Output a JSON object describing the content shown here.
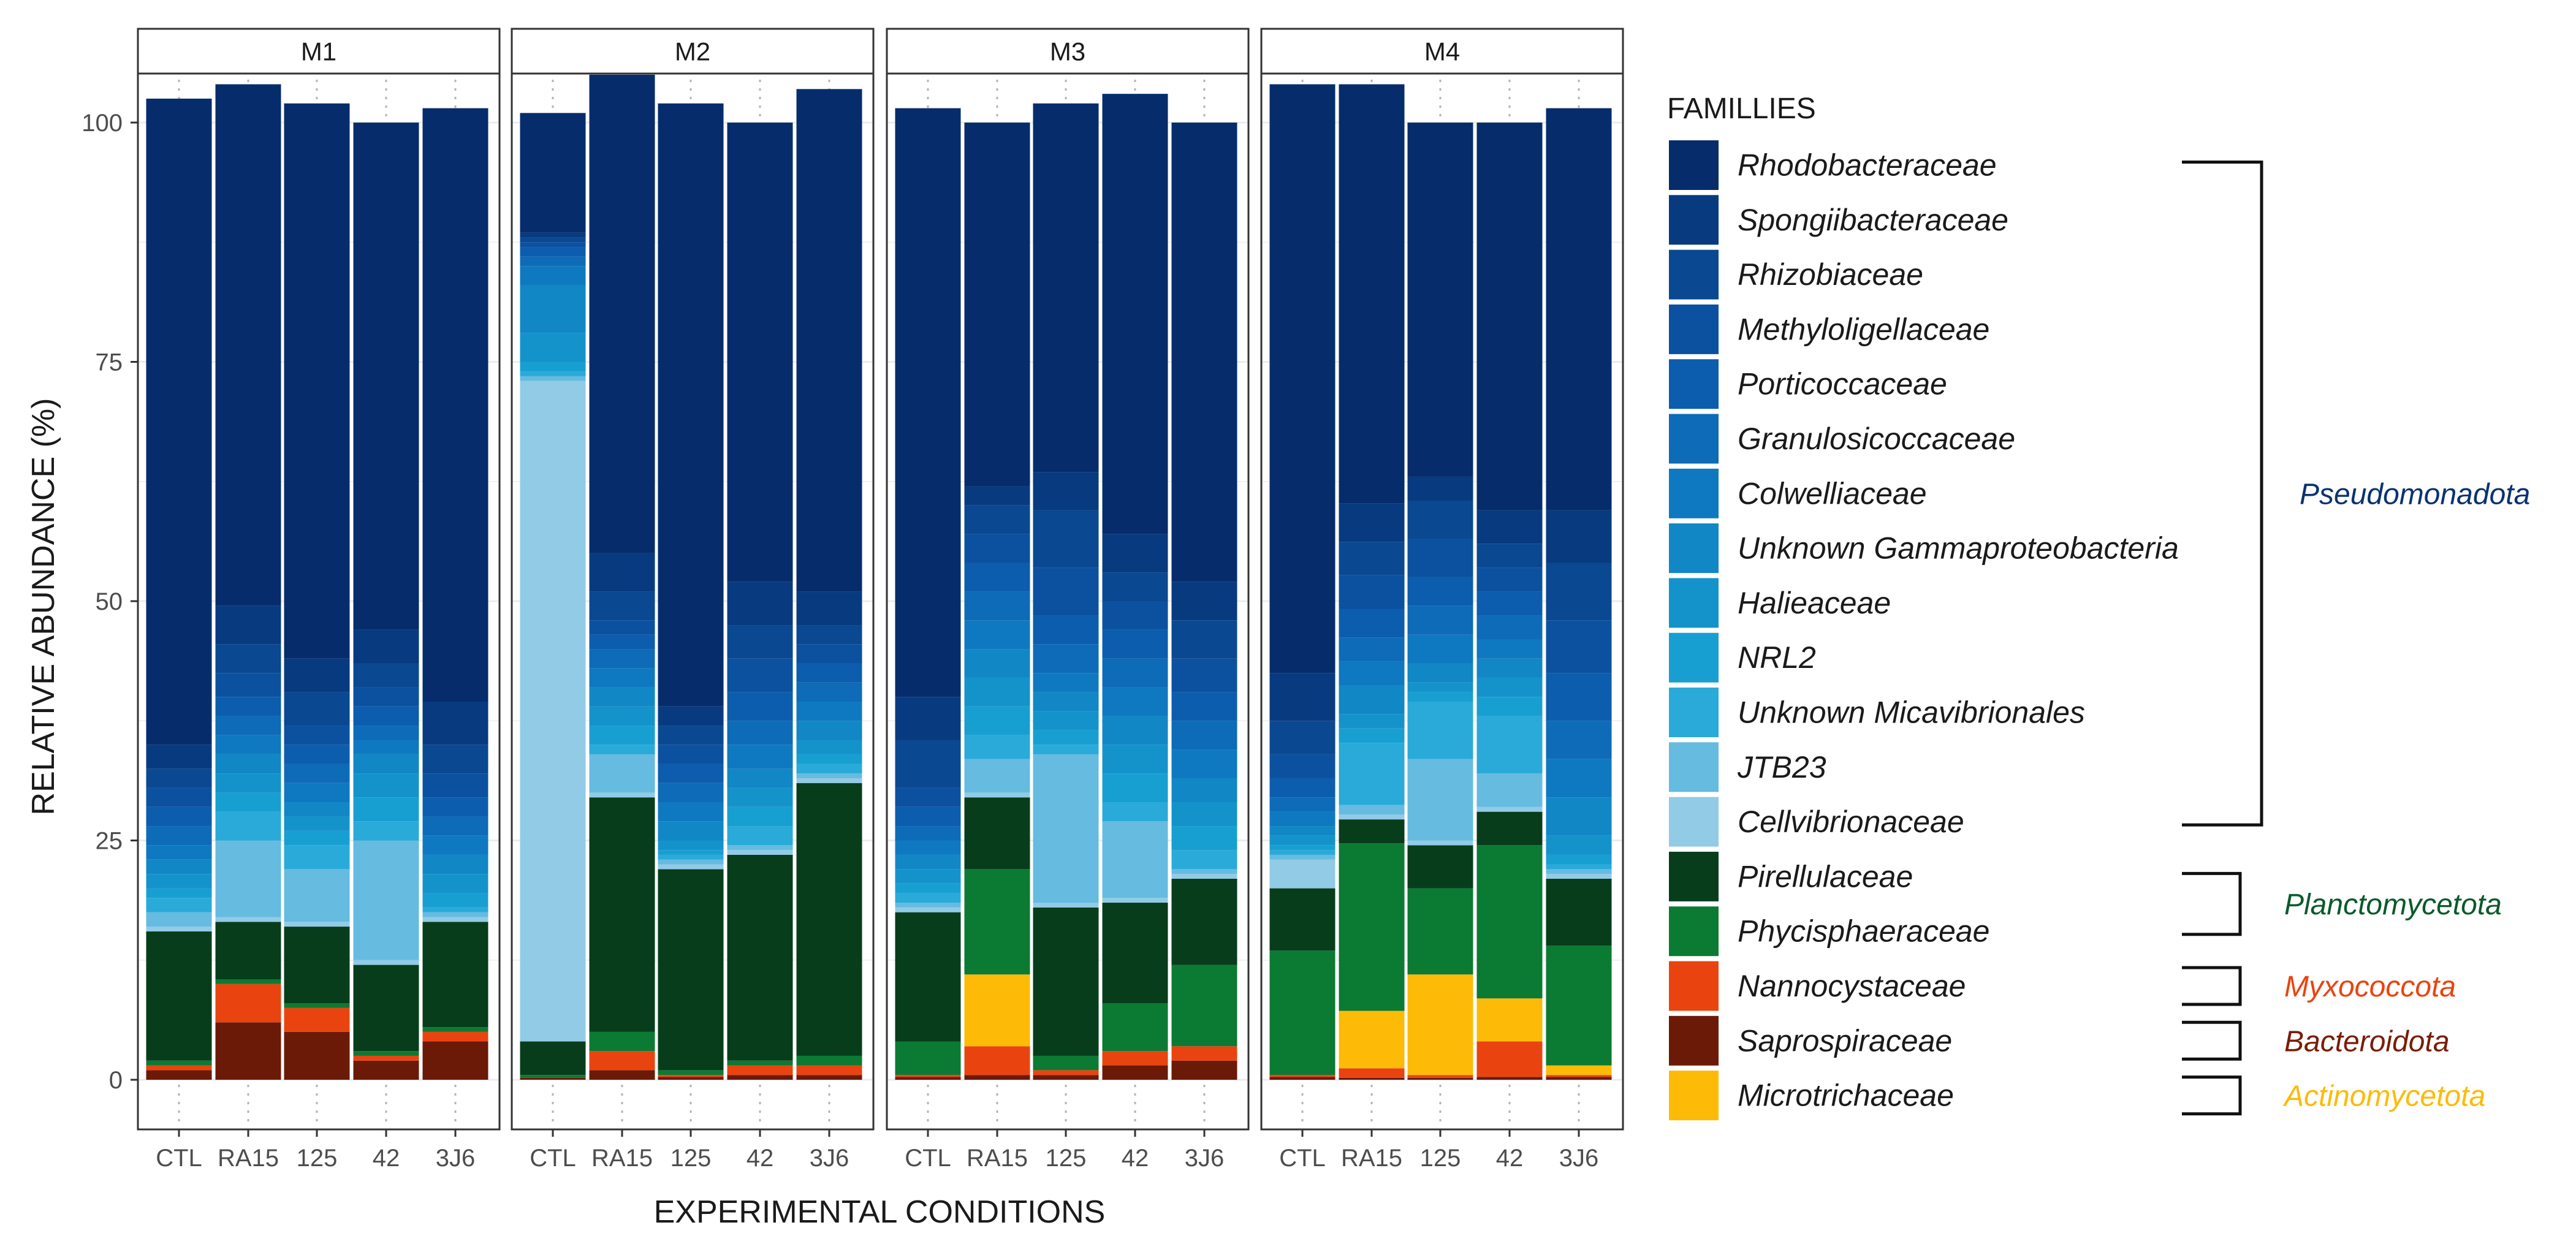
{
  "chart_data": {
    "type": "bar",
    "stacked": true,
    "faceted": true,
    "ylabel": "RELATIVE ABUNDANCE (%)",
    "xlabel": "EXPERIMENTAL CONDITIONS",
    "ylim": [
      0,
      100
    ],
    "yticks": [
      0,
      25,
      50,
      75,
      100
    ],
    "categories": [
      "CTL",
      "RA15",
      "125",
      "42",
      "3J6"
    ],
    "legend_title": "FAMILLIES",
    "families": [
      {
        "name": "Rhodobacteraceae",
        "color": "#062C6B"
      },
      {
        "name": "Spongiibacteraceae",
        "color": "#083A80"
      },
      {
        "name": "Rhizobiaceae",
        "color": "#0A4891"
      },
      {
        "name": "Methyloligellaceae",
        "color": "#0B51A0"
      },
      {
        "name": "Porticoccaceae",
        "color": "#0C5DAD"
      },
      {
        "name": "Granulosicoccaceae",
        "color": "#0D6BB8"
      },
      {
        "name": "Colwelliaceae",
        "color": "#0E79C0"
      },
      {
        "name": "Unknown Gammaproteobacteria",
        "color": "#1187C6"
      },
      {
        "name": "Halieaceae",
        "color": "#1493CB"
      },
      {
        "name": "NRL2",
        "color": "#189FD2"
      },
      {
        "name": "Unknown Micavibrionales",
        "color": "#2AAAD9"
      },
      {
        "name": "JTB23",
        "color": "#66BBE0"
      },
      {
        "name": "Cellvibrionaceae",
        "color": "#91CBE6"
      },
      {
        "name": "Pirellulaceae",
        "color": "#073D1B"
      },
      {
        "name": "Phycisphaeraceae",
        "color": "#0B7A33"
      },
      {
        "name": "Nannocystaceae",
        "color": "#E9440F"
      },
      {
        "name": "Saprospiraceae",
        "color": "#6B1A08"
      },
      {
        "name": "Microtrichaceae",
        "color": "#FDBB08"
      }
    ],
    "phyla": [
      {
        "name": "Pseudomonadota",
        "color": "#0A3272",
        "first": 0,
        "last": 12
      },
      {
        "name": "Planctomycetota",
        "color": "#0B5A2B",
        "first": 13,
        "last": 14
      },
      {
        "name": "Myxococcota",
        "color": "#E9440F",
        "first": 15,
        "last": 15
      },
      {
        "name": "Bacteroidota",
        "color": "#7A1D06",
        "first": 16,
        "last": 16
      },
      {
        "name": "Actinomycetota",
        "color": "#FDBB08",
        "first": 17,
        "last": 17
      }
    ],
    "stack_order_bottom_up": [
      "Saprospiraceae",
      "Nannocystaceae",
      "Microtrichaceae",
      "Phycisphaeraceae",
      "Pirellulaceae",
      "Cellvibrionaceae",
      "JTB23",
      "Unknown Micavibrionales",
      "NRL2",
      "Halieaceae",
      "Unknown Gammaproteobacteria",
      "Colwelliaceae",
      "Granulosicoccaceae",
      "Porticoccaceae",
      "Methyloligellaceae",
      "Rhizobiaceae",
      "Spongiibacteraceae",
      "Rhodobacteraceae"
    ],
    "panels": [
      {
        "title": "M1",
        "bars": [
          {
            "condition": "CTL",
            "values": {
              "Saprospiraceae": 1.0,
              "Nannocystaceae": 0.5,
              "Microtrichaceae": 0,
              "Phycisphaeraceae": 0.5,
              "Pirellulaceae": 13.5,
              "Cellvibrionaceae": 0.5,
              "JTB23": 1.5,
              "Unknown Micavibrionales": 1.5,
              "NRL2": 1.0,
              "Halieaceae": 1.5,
              "Unknown Gammaproteobacteria": 1.5,
              "Colwelliaceae": 1.5,
              "Granulosicoccaceae": 2.0,
              "Porticoccaceae": 2.0,
              "Methyloligellaceae": 2.0,
              "Rhizobiaceae": 2.0,
              "Spongiibacteraceae": 2.5,
              "Rhodobacteraceae": 67.5
            }
          },
          {
            "condition": "RA15",
            "values": {
              "Saprospiraceae": 6.0,
              "Nannocystaceae": 4.0,
              "Microtrichaceae": 0,
              "Phycisphaeraceae": 0.5,
              "Pirellulaceae": 6.0,
              "Cellvibrionaceae": 0.5,
              "JTB23": 8.0,
              "Unknown Micavibrionales": 3.0,
              "NRL2": 2.0,
              "Halieaceae": 2.0,
              "Unknown Gammaproteobacteria": 2.0,
              "Colwelliaceae": 2.0,
              "Granulosicoccaceae": 2.0,
              "Porticoccaceae": 2.0,
              "Methyloligellaceae": 2.5,
              "Rhizobiaceae": 3.0,
              "Spongiibacteraceae": 4.0,
              "Rhodobacteraceae": 54.5
            }
          },
          {
            "condition": "125",
            "values": {
              "Saprospiraceae": 5.0,
              "Nannocystaceae": 2.5,
              "Microtrichaceae": 0,
              "Phycisphaeraceae": 0.5,
              "Pirellulaceae": 8.0,
              "Cellvibrionaceae": 0.5,
              "JTB23": 5.5,
              "Unknown Micavibrionales": 2.5,
              "NRL2": 1.5,
              "Halieaceae": 1.5,
              "Unknown Gammaproteobacteria": 1.5,
              "Colwelliaceae": 2.0,
              "Granulosicoccaceae": 2.0,
              "Porticoccaceae": 2.0,
              "Methyloligellaceae": 2.0,
              "Rhizobiaceae": 3.5,
              "Spongiibacteraceae": 3.5,
              "Rhodobacteraceae": 58.0
            }
          },
          {
            "condition": "42",
            "values": {
              "Saprospiraceae": 2.0,
              "Nannocystaceae": 0.5,
              "Microtrichaceae": 0,
              "Phycisphaeraceae": 0.5,
              "Pirellulaceae": 9.0,
              "Cellvibrionaceae": 0.5,
              "JTB23": 12.5,
              "Unknown Micavibrionales": 2.0,
              "NRL2": 2.5,
              "Halieaceae": 2.5,
              "Unknown Gammaproteobacteria": 2.0,
              "Colwelliaceae": 1.5,
              "Granulosicoccaceae": 1.5,
              "Porticoccaceae": 2.0,
              "Methyloligellaceae": 2.0,
              "Rhizobiaceae": 2.5,
              "Spongiibacteraceae": 3.5,
              "Rhodobacteraceae": 53.0
            }
          },
          {
            "condition": "3J6",
            "values": {
              "Saprospiraceae": 4.0,
              "Nannocystaceae": 1.0,
              "Microtrichaceae": 0,
              "Phycisphaeraceae": 0.5,
              "Pirellulaceae": 11.0,
              "Cellvibrionaceae": 0.5,
              "JTB23": 0.5,
              "Unknown Micavibrionales": 0.5,
              "NRL2": 1.5,
              "Halieaceae": 2.0,
              "Unknown Gammaproteobacteria": 2.0,
              "Colwelliaceae": 2.0,
              "Granulosicoccaceae": 2.0,
              "Porticoccaceae": 2.0,
              "Methyloligellaceae": 2.5,
              "Rhizobiaceae": 3.0,
              "Spongiibacteraceae": 4.5,
              "Rhodobacteraceae": 62.0
            }
          }
        ]
      },
      {
        "title": "M2",
        "bars": [
          {
            "condition": "CTL",
            "values": {
              "Saprospiraceae": 0.2,
              "Nannocystaceae": 0,
              "Microtrichaceae": 0,
              "Phycisphaeraceae": 0.3,
              "Pirellulaceae": 3.5,
              "Cellvibrionaceae": 69.0,
              "JTB23": 0.5,
              "Unknown Micavibrionales": 0.5,
              "NRL2": 1.0,
              "Halieaceae": 3.0,
              "Unknown Gammaproteobacteria": 5.0,
              "Colwelliaceae": 2.0,
              "Granulosicoccaceae": 1.0,
              "Porticoccaceae": 1.0,
              "Methyloligellaceae": 0.5,
              "Rhizobiaceae": 0.5,
              "Spongiibacteraceae": 0.5,
              "Rhodobacteraceae": 12.5
            }
          },
          {
            "condition": "RA15",
            "values": {
              "Saprospiraceae": 1.0,
              "Nannocystaceae": 2.0,
              "Microtrichaceae": 0,
              "Phycisphaeraceae": 2.0,
              "Pirellulaceae": 24.5,
              "Cellvibrionaceae": 0.5,
              "JTB23": 4.0,
              "Unknown Micavibrionales": 1.0,
              "NRL2": 2.0,
              "Halieaceae": 2.0,
              "Unknown Gammaproteobacteria": 2.0,
              "Colwelliaceae": 2.0,
              "Granulosicoccaceae": 2.0,
              "Porticoccaceae": 1.5,
              "Methyloligellaceae": 1.5,
              "Rhizobiaceae": 3.0,
              "Spongiibacteraceae": 4.0,
              "Rhodobacteraceae": 50.0
            }
          },
          {
            "condition": "125",
            "values": {
              "Saprospiraceae": 0.3,
              "Nannocystaceae": 0.2,
              "Microtrichaceae": 0,
              "Phycisphaeraceae": 0.5,
              "Pirellulaceae": 21.0,
              "Cellvibrionaceae": 0.5,
              "JTB23": 0.5,
              "Unknown Micavibrionales": 0.5,
              "NRL2": 0.5,
              "Halieaceae": 1.0,
              "Unknown Gammaproteobacteria": 2.0,
              "Colwelliaceae": 2.0,
              "Granulosicoccaceae": 2.0,
              "Porticoccaceae": 2.0,
              "Methyloligellaceae": 2.0,
              "Rhizobiaceae": 2.0,
              "Spongiibacteraceae": 2.0,
              "Rhodobacteraceae": 63.0
            }
          },
          {
            "condition": "42",
            "values": {
              "Saprospiraceae": 0.5,
              "Nannocystaceae": 1.0,
              "Microtrichaceae": 0,
              "Phycisphaeraceae": 0.5,
              "Pirellulaceae": 21.5,
              "Cellvibrionaceae": 0.5,
              "JTB23": 0.5,
              "Unknown Micavibrionales": 2.0,
              "NRL2": 2.0,
              "Halieaceae": 2.0,
              "Unknown Gammaproteobacteria": 2.0,
              "Colwelliaceae": 2.5,
              "Granulosicoccaceae": 2.5,
              "Porticoccaceae": 3.0,
              "Methyloligellaceae": 3.5,
              "Rhizobiaceae": 3.5,
              "Spongiibacteraceae": 4.5,
              "Rhodobacteraceae": 48.0
            }
          },
          {
            "condition": "3J6",
            "values": {
              "Saprospiraceae": 0.5,
              "Nannocystaceae": 1.0,
              "Microtrichaceae": 0,
              "Phycisphaeraceae": 1.0,
              "Pirellulaceae": 28.5,
              "Cellvibrionaceae": 0.5,
              "JTB23": 0.5,
              "Unknown Micavibrionales": 1.0,
              "NRL2": 1.0,
              "Halieaceae": 1.5,
              "Unknown Gammaproteobacteria": 2.0,
              "Colwelliaceae": 2.0,
              "Granulosicoccaceae": 2.0,
              "Porticoccaceae": 2.0,
              "Methyloligellaceae": 2.0,
              "Rhizobiaceae": 2.0,
              "Spongiibacteraceae": 3.5,
              "Rhodobacteraceae": 52.5
            }
          }
        ]
      },
      {
        "title": "M3",
        "bars": [
          {
            "condition": "CTL",
            "values": {
              "Saprospiraceae": 0.3,
              "Nannocystaceae": 0.2,
              "Microtrichaceae": 0,
              "Phycisphaeraceae": 3.5,
              "Pirellulaceae": 13.5,
              "Cellvibrionaceae": 0.5,
              "JTB23": 0.5,
              "Unknown Micavibrionales": 1.0,
              "NRL2": 1.0,
              "Halieaceae": 1.5,
              "Unknown Gammaproteobacteria": 1.5,
              "Colwelliaceae": 1.5,
              "Granulosicoccaceae": 1.5,
              "Porticoccaceae": 2.0,
              "Methyloligellaceae": 2.0,
              "Rhizobiaceae": 5.0,
              "Spongiibacteraceae": 4.5,
              "Rhodobacteraceae": 61.5
            }
          },
          {
            "condition": "RA15",
            "values": {
              "Saprospiraceae": 0.5,
              "Nannocystaceae": 3.0,
              "Microtrichaceae": 7.5,
              "Phycisphaeraceae": 11.0,
              "Pirellulaceae": 7.5,
              "Cellvibrionaceae": 0.5,
              "JTB23": 3.5,
              "Unknown Micavibrionales": 2.5,
              "NRL2": 3.0,
              "Halieaceae": 3.0,
              "Unknown Gammaproteobacteria": 3.0,
              "Colwelliaceae": 3.0,
              "Granulosicoccaceae": 3.0,
              "Porticoccaceae": 3.0,
              "Methyloligellaceae": 3.0,
              "Rhizobiaceae": 3.0,
              "Spongiibacteraceae": 2.0,
              "Rhodobacteraceae": 38.0
            }
          },
          {
            "condition": "125",
            "values": {
              "Saprospiraceae": 0.5,
              "Nannocystaceae": 0.5,
              "Microtrichaceae": 0,
              "Phycisphaeraceae": 1.5,
              "Pirellulaceae": 15.5,
              "Cellvibrionaceae": 0.5,
              "JTB23": 15.5,
              "Unknown Micavibrionales": 1.0,
              "NRL2": 1.5,
              "Halieaceae": 2.0,
              "Unknown Gammaproteobacteria": 2.0,
              "Colwelliaceae": 2.0,
              "Granulosicoccaceae": 3.0,
              "Porticoccaceae": 3.0,
              "Methyloligellaceae": 5.0,
              "Rhizobiaceae": 6.0,
              "Spongiibacteraceae": 4.0,
              "Rhodobacteraceae": 38.5
            }
          },
          {
            "condition": "42",
            "values": {
              "Saprospiraceae": 1.5,
              "Nannocystaceae": 1.5,
              "Microtrichaceae": 0,
              "Phycisphaeraceae": 5.0,
              "Pirellulaceae": 10.5,
              "Cellvibrionaceae": 0.5,
              "JTB23": 8.0,
              "Unknown Micavibrionales": 2.0,
              "NRL2": 3.0,
              "Halieaceae": 3.0,
              "Unknown Gammaproteobacteria": 3.0,
              "Colwelliaceae": 3.0,
              "Granulosicoccaceae": 3.0,
              "Porticoccaceae": 3.0,
              "Methyloligellaceae": 3.0,
              "Rhizobiaceae": 3.0,
              "Spongiibacteraceae": 4.0,
              "Rhodobacteraceae": 46.0
            }
          },
          {
            "condition": "3J6",
            "values": {
              "Saprospiraceae": 2.0,
              "Nannocystaceae": 1.5,
              "Microtrichaceae": 0,
              "Phycisphaeraceae": 8.5,
              "Pirellulaceae": 9.0,
              "Cellvibrionaceae": 0.5,
              "JTB23": 0.5,
              "Unknown Micavibrionales": 2.0,
              "NRL2": 2.5,
              "Halieaceae": 2.5,
              "Unknown Gammaproteobacteria": 2.5,
              "Colwelliaceae": 3.0,
              "Granulosicoccaceae": 3.0,
              "Porticoccaceae": 3.0,
              "Methyloligellaceae": 3.5,
              "Rhizobiaceae": 4.0,
              "Spongiibacteraceae": 4.0,
              "Rhodobacteraceae": 48.0
            }
          }
        ]
      },
      {
        "title": "M4",
        "bars": [
          {
            "condition": "CTL",
            "values": {
              "Saprospiraceae": 0.3,
              "Nannocystaceae": 0.2,
              "Microtrichaceae": 0,
              "Phycisphaeraceae": 13.0,
              "Pirellulaceae": 6.5,
              "Cellvibrionaceae": 3.0,
              "JTB23": 0.5,
              "Unknown Micavibrionales": 0.5,
              "NRL2": 0.5,
              "Halieaceae": 1.0,
              "Unknown Gammaproteobacteria": 1.0,
              "Colwelliaceae": 1.5,
              "Granulosicoccaceae": 1.5,
              "Porticoccaceae": 2.0,
              "Methyloligellaceae": 2.5,
              "Rhizobiaceae": 3.5,
              "Spongiibacteraceae": 5.0,
              "Rhodobacteraceae": 61.5
            }
          },
          {
            "condition": "RA15",
            "values": {
              "Saprospiraceae": 0.2,
              "Nannocystaceae": 1.0,
              "Microtrichaceae": 6.0,
              "Phycisphaeraceae": 17.5,
              "Pirellulaceae": 2.5,
              "Cellvibrionaceae": 0.5,
              "JTB23": 1.0,
              "Unknown Micavibrionales": 6.5,
              "NRL2": 1.5,
              "Halieaceae": 1.5,
              "Unknown Gammaproteobacteria": 3.0,
              "Colwelliaceae": 2.5,
              "Granulosicoccaceae": 2.5,
              "Porticoccaceae": 3.0,
              "Methyloligellaceae": 3.5,
              "Rhizobiaceae": 3.5,
              "Spongiibacteraceae": 4.0,
              "Rhodobacteraceae": 43.8
            }
          },
          {
            "condition": "125",
            "values": {
              "Saprospiraceae": 0.2,
              "Nannocystaceae": 0.3,
              "Microtrichaceae": 10.5,
              "Phycisphaeraceae": 9.0,
              "Pirellulaceae": 4.5,
              "Cellvibrionaceae": 0.5,
              "JTB23": 8.5,
              "Unknown Micavibrionales": 6.0,
              "NRL2": 1.0,
              "Halieaceae": 1.0,
              "Unknown Gammaproteobacteria": 2.0,
              "Colwelliaceae": 3.0,
              "Granulosicoccaceae": 3.0,
              "Porticoccaceae": 3.0,
              "Methyloligellaceae": 4.0,
              "Rhizobiaceae": 4.0,
              "Spongiibacteraceae": 2.5,
              "Rhodobacteraceae": 37.0
            }
          },
          {
            "condition": "42",
            "values": {
              "Saprospiraceae": 0.3,
              "Nannocystaceae": 3.7,
              "Microtrichaceae": 4.5,
              "Phycisphaeraceae": 16.0,
              "Pirellulaceae": 3.5,
              "Cellvibrionaceae": 0.5,
              "JTB23": 3.5,
              "Unknown Micavibrionales": 6.0,
              "NRL2": 2.0,
              "Halieaceae": 2.0,
              "Unknown Gammaproteobacteria": 2.0,
              "Colwelliaceae": 2.0,
              "Granulosicoccaceae": 2.5,
              "Porticoccaceae": 2.5,
              "Methyloligellaceae": 2.5,
              "Rhizobiaceae": 2.5,
              "Spongiibacteraceae": 3.5,
              "Rhodobacteraceae": 40.5
            }
          },
          {
            "condition": "3J6",
            "values": {
              "Saprospiraceae": 0.3,
              "Nannocystaceae": 0.2,
              "Microtrichaceae": 1.0,
              "Phycisphaeraceae": 12.5,
              "Pirellulaceae": 7.0,
              "Cellvibrionaceae": 0.5,
              "JTB23": 0.5,
              "Unknown Micavibrionales": 0.5,
              "NRL2": 1.0,
              "Halieaceae": 2.0,
              "Unknown Gammaproteobacteria": 4.0,
              "Colwelliaceae": 4.0,
              "Granulosicoccaceae": 4.0,
              "Porticoccaceae": 5.0,
              "Methyloligellaceae": 5.5,
              "Rhizobiaceae": 6.0,
              "Spongiibacteraceae": 5.5,
              "Rhodobacteraceae": 42.0
            }
          }
        ]
      }
    ]
  }
}
